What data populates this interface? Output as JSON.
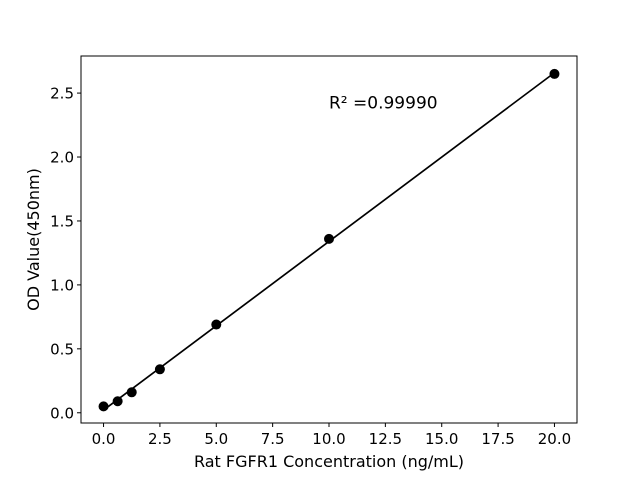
{
  "figure": {
    "background": "#ffffff"
  },
  "chart_data": {
    "type": "scatter",
    "title": "",
    "xlabel": "Rat FGFR1 Concentration (ng/mL)",
    "ylabel": "OD Value(450nm)",
    "points": {
      "x": [
        0,
        0.625,
        1.25,
        2.5,
        5,
        10,
        20
      ],
      "y": [
        0.05,
        0.09,
        0.16,
        0.34,
        0.69,
        1.36,
        2.65
      ]
    },
    "fit_line": {
      "type": "linear_regression",
      "r_squared_label": "R² =0.99990",
      "label_position_data_coords": [
        10.0,
        2.38
      ]
    },
    "xticks": {
      "values": [
        0,
        2.5,
        5,
        7.5,
        10,
        12.5,
        15,
        17.5,
        20
      ],
      "labels": [
        "0.0",
        "2.5",
        "5.0",
        "7.5",
        "10.0",
        "12.5",
        "15.0",
        "17.5",
        "20.0"
      ]
    },
    "yticks": {
      "values": [
        0,
        0.5,
        1,
        1.5,
        2,
        2.5
      ],
      "labels": [
        "0.0",
        "0.5",
        "1.0",
        "1.5",
        "2.0",
        "2.5"
      ]
    },
    "xlim": [
      -1,
      21
    ],
    "ylim": [
      -0.08,
      2.79
    ],
    "grid": false,
    "legend": false,
    "colors": {
      "marker": "#000000",
      "line": "#000000",
      "text": "#000000",
      "axis": "#000000"
    },
    "marker": {
      "shape": "circle",
      "radius_px": 5
    }
  }
}
